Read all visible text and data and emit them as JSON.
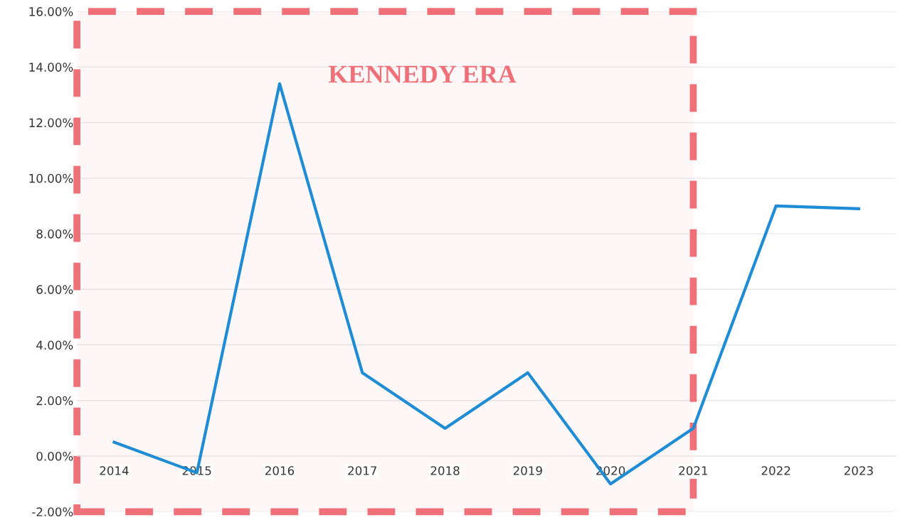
{
  "chart_data": {
    "type": "line",
    "categories": [
      "2014",
      "2015",
      "2016",
      "2017",
      "2018",
      "2019",
      "2020",
      "2021",
      "2022",
      "2023"
    ],
    "series": [
      {
        "color": "#1f8dd6",
        "values": [
          0.5,
          -0.6,
          13.4,
          3.0,
          1.0,
          3.0,
          -1.0,
          1.0,
          9.0,
          8.9
        ]
      }
    ],
    "ylim": [
      -2,
      16
    ],
    "yticks": [
      {
        "value": -2,
        "label": "-2.00%"
      },
      {
        "value": 0,
        "label": "0.00%"
      },
      {
        "value": 2,
        "label": "2.00%"
      },
      {
        "value": 4,
        "label": "4.00%"
      },
      {
        "value": 6,
        "label": "6.00%"
      },
      {
        "value": 8,
        "label": "8.00%"
      },
      {
        "value": 10,
        "label": "10.00%"
      },
      {
        "value": 12,
        "label": "12.00%"
      },
      {
        "value": 14,
        "label": "14.00%"
      },
      {
        "value": 16,
        "label": "16.00%"
      }
    ],
    "grid": "y",
    "marker": "none",
    "line_style": "solid",
    "bands": [
      {
        "axis": "x",
        "from": "2014",
        "to": "2021",
        "label": "KENNEDY ERA",
        "color": "#f0707a"
      }
    ]
  }
}
